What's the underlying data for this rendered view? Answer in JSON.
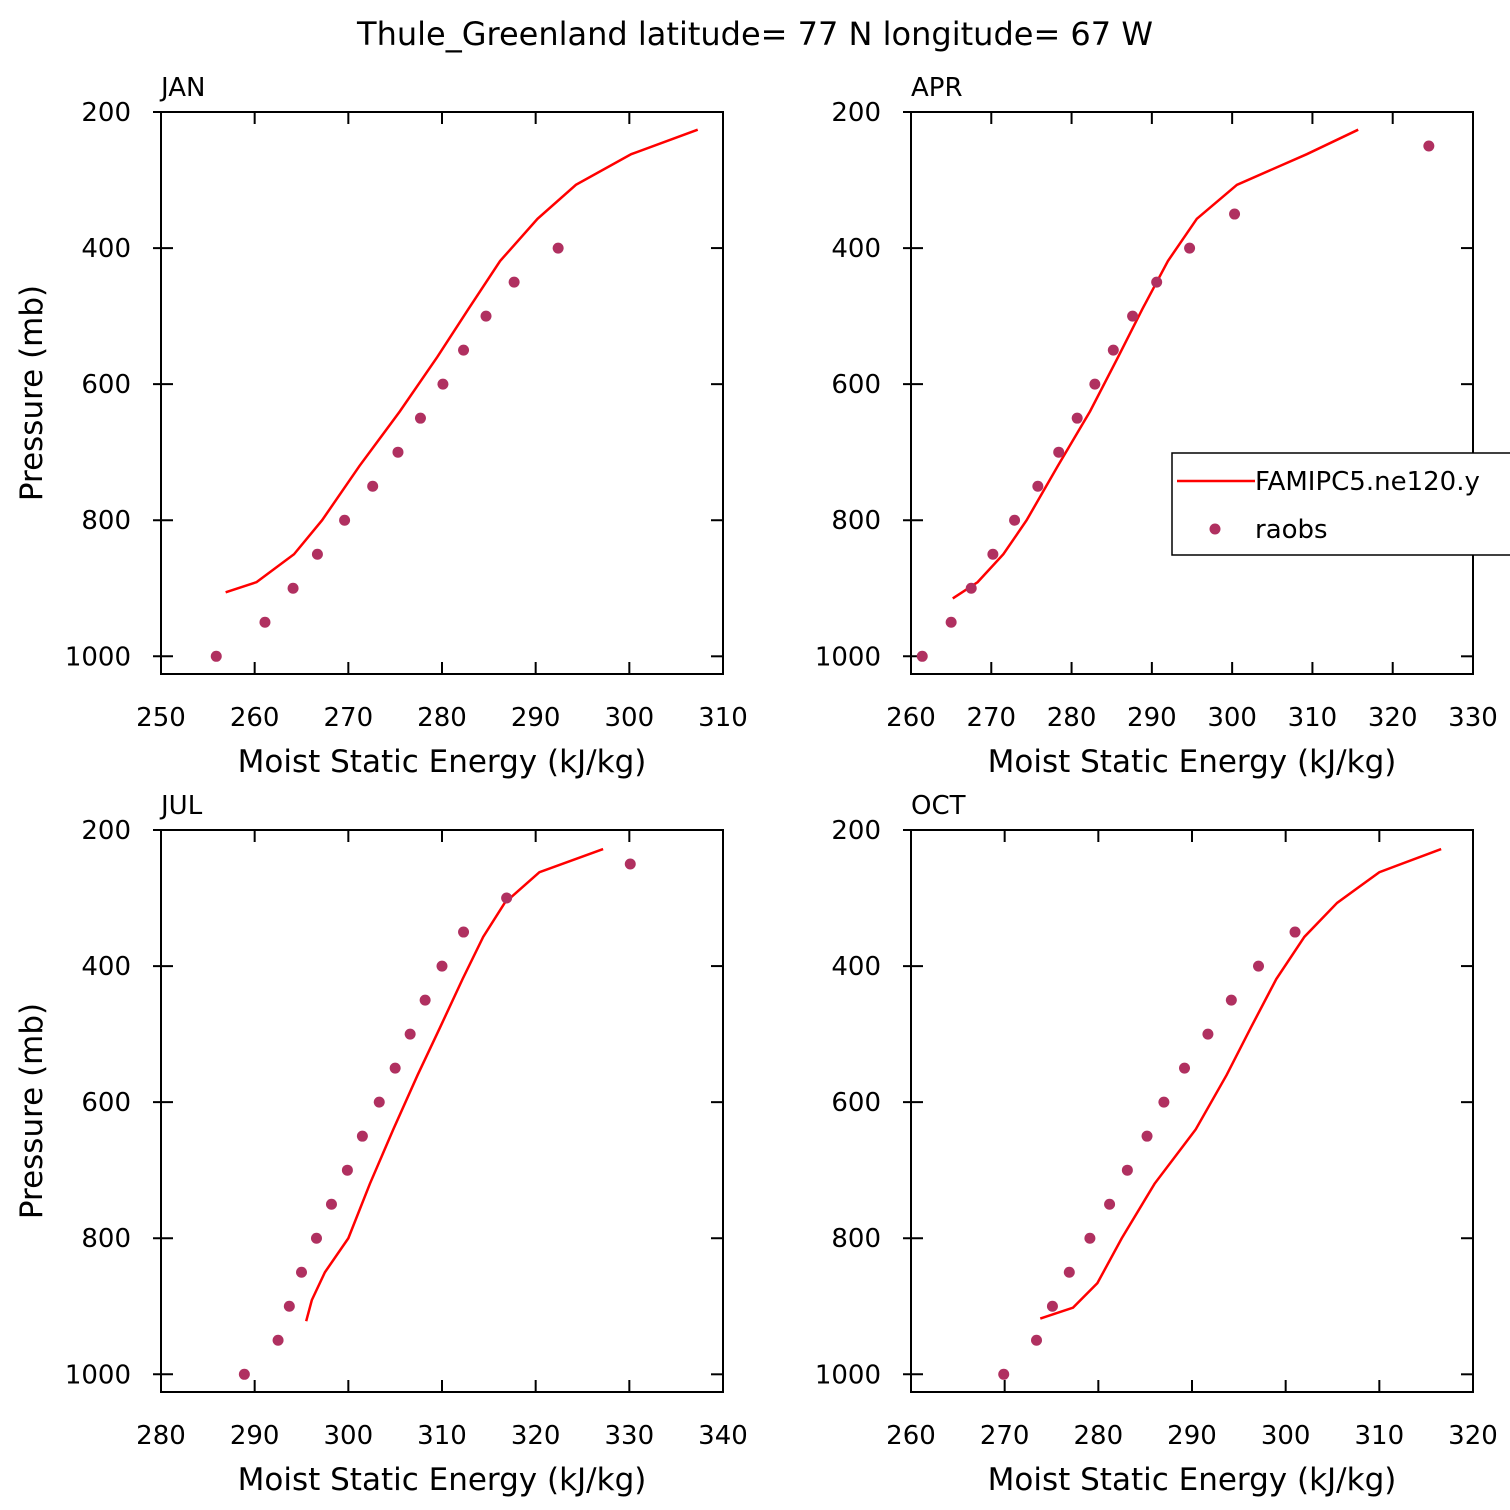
{
  "title": "Thule_Greenland  latitude= 77 N longitude= 67 W",
  "chart_data": [
    {
      "type": "line",
      "title": "JAN",
      "xlabel": "Moist Static Energy (kJ/kg)",
      "ylabel": "Pressure (mb)",
      "xlim": [
        250,
        310
      ],
      "xticks": [
        250,
        260,
        270,
        280,
        290,
        300,
        310
      ],
      "ylim": [
        200,
        1026
      ],
      "yticks": [
        200,
        400,
        600,
        800,
        1000
      ],
      "yreverse": true,
      "series": [
        {
          "color": "#ff0000",
          "mode": "line",
          "x": [
            307.3,
            300.2,
            294.3,
            290.2,
            286.2,
            282.8,
            279.5,
            275.5,
            271.2,
            267.2,
            264.2,
            260.2,
            256.9
          ],
          "values": [
            226,
            262,
            307,
            357,
            419,
            490,
            560,
            640,
            720,
            800,
            850,
            891,
            906
          ]
        },
        {
          "color": "#b03060",
          "mode": "markers",
          "x": [
            255.9,
            261.1,
            264.1,
            266.7,
            269.6,
            272.6,
            275.3,
            277.7,
            280.1,
            282.3,
            284.7,
            287.7,
            292.4
          ],
          "values": [
            1000,
            950,
            900,
            850,
            800,
            750,
            700,
            650,
            600,
            550,
            500,
            450,
            400
          ]
        }
      ]
    },
    {
      "type": "line",
      "title": "APR",
      "xlabel": "Moist Static Energy (kJ/kg)",
      "xlim": [
        260,
        330
      ],
      "xticks": [
        260,
        270,
        280,
        290,
        300,
        310,
        320,
        330
      ],
      "ylim": [
        200,
        1026
      ],
      "yticks": [
        200,
        400,
        600,
        800,
        1000
      ],
      "yreverse": true,
      "legend": "right",
      "series": [
        {
          "name": "FAMIPC5.ne120.y",
          "color": "#ff0000",
          "mode": "line",
          "x": [
            315.7,
            309.3,
            300.6,
            295.6,
            292.0,
            288.8,
            285.8,
            282.3,
            278.3,
            274.4,
            271.5,
            268.3,
            265.2
          ],
          "values": [
            226,
            262,
            307,
            357,
            419,
            490,
            560,
            640,
            720,
            800,
            850,
            891,
            915
          ]
        },
        {
          "name": "raobs",
          "color": "#b03060",
          "mode": "markers",
          "x": [
            261.4,
            265.0,
            267.5,
            270.2,
            272.9,
            275.8,
            278.4,
            280.7,
            282.9,
            285.2,
            287.6,
            290.6,
            294.7,
            300.3,
            324.5
          ],
          "values": [
            1000,
            950,
            900,
            850,
            800,
            750,
            700,
            650,
            600,
            550,
            500,
            450,
            400,
            350,
            250
          ]
        }
      ]
    },
    {
      "type": "line",
      "title": "JUL",
      "xlabel": "Moist Static Energy (kJ/kg)",
      "ylabel": "Pressure (mb)",
      "xlim": [
        280,
        340
      ],
      "xticks": [
        280,
        290,
        300,
        310,
        320,
        330,
        340
      ],
      "ylim": [
        200,
        1026
      ],
      "yticks": [
        200,
        400,
        600,
        800,
        1000
      ],
      "yreverse": true,
      "series": [
        {
          "color": "#ff0000",
          "mode": "line",
          "x": [
            327.2,
            320.4,
            316.7,
            314.4,
            312.2,
            309.8,
            307.4,
            304.8,
            302.3,
            300.0,
            297.5,
            296.1,
            295.5
          ],
          "values": [
            228,
            262,
            307,
            357,
            419,
            490,
            560,
            640,
            720,
            800,
            850,
            891,
            922
          ]
        },
        {
          "color": "#b03060",
          "mode": "markers",
          "x": [
            288.9,
            292.5,
            293.7,
            295.0,
            296.6,
            298.2,
            299.9,
            301.5,
            303.3,
            305.0,
            306.6,
            308.2,
            310.0,
            312.3,
            316.9,
            330.1
          ],
          "values": [
            1000,
            950,
            900,
            850,
            800,
            750,
            700,
            650,
            600,
            550,
            500,
            450,
            400,
            350,
            300,
            250
          ]
        }
      ]
    },
    {
      "type": "line",
      "title": "OCT",
      "xlabel": "Moist Static Energy (kJ/kg)",
      "xlim": [
        260,
        320
      ],
      "xticks": [
        260,
        270,
        280,
        290,
        300,
        310,
        320
      ],
      "ylim": [
        200,
        1026
      ],
      "yticks": [
        200,
        400,
        600,
        800,
        1000
      ],
      "yreverse": true,
      "series": [
        {
          "color": "#ff0000",
          "mode": "line",
          "x": [
            316.6,
            310.0,
            305.5,
            302.0,
            299.0,
            296.3,
            293.7,
            290.4,
            286.0,
            282.5,
            279.9,
            277.3,
            273.8
          ],
          "values": [
            228,
            262,
            307,
            357,
            419,
            490,
            560,
            640,
            720,
            800,
            866,
            902,
            918
          ]
        },
        {
          "color": "#b03060",
          "mode": "markers",
          "x": [
            269.9,
            273.4,
            275.1,
            276.9,
            279.1,
            281.2,
            283.1,
            285.2,
            287.0,
            289.2,
            291.7,
            294.2,
            297.1,
            301.0
          ],
          "values": [
            1000,
            950,
            900,
            850,
            800,
            750,
            700,
            650,
            600,
            550,
            500,
            450,
            400,
            350
          ]
        }
      ]
    }
  ]
}
